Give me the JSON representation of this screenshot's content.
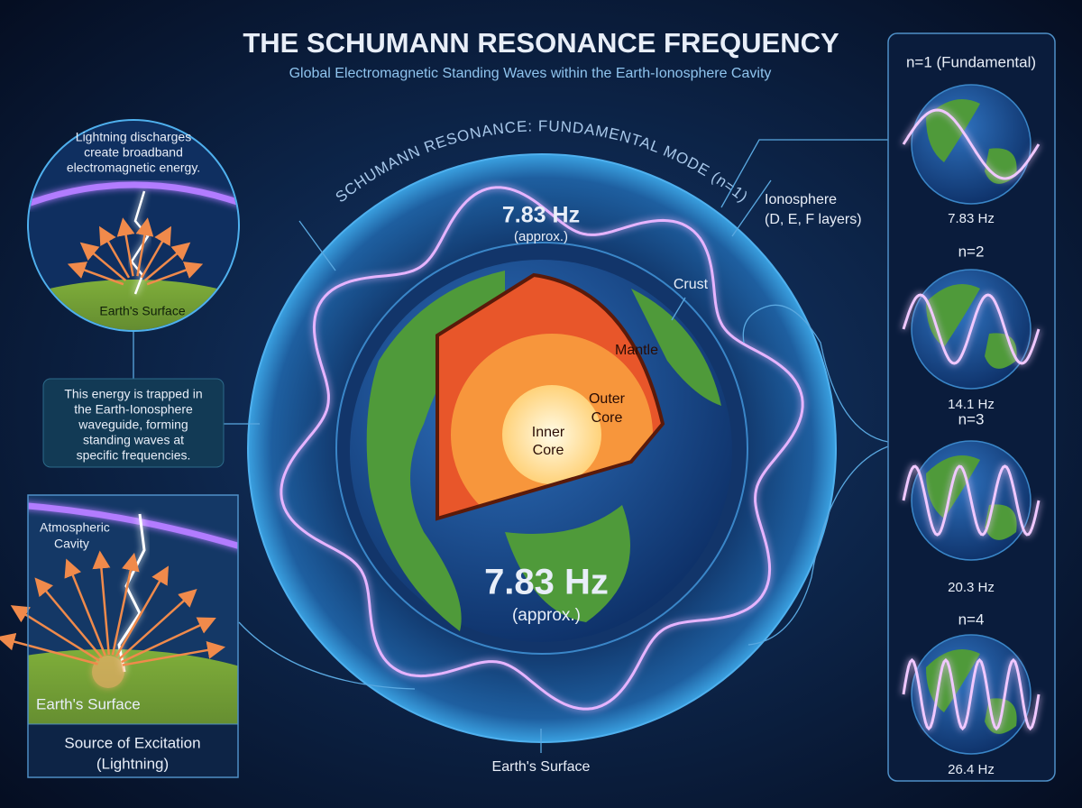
{
  "header": {
    "title": "THE SCHUMANN RESONANCE FREQUENCY",
    "subtitle": "Global Electromagnetic Standing Waves within the Earth-Ionosphere Cavity"
  },
  "center": {
    "arc_label": "SCHUMANN RESONANCE: FUNDAMENTAL MODE (n=1)",
    "top_frequency": "7.83 Hz",
    "top_note": "(approx.)",
    "frequency": "7.83 Hz",
    "note": "(approx.)",
    "ionosphere": [
      "Ionosphere",
      "(D, E, F layers)"
    ],
    "crust": "Crust",
    "mantle": "Mantle",
    "outer_core": [
      "Outer",
      "Core"
    ],
    "inner_core": [
      "Inner",
      "Core"
    ],
    "surface": "Earth's Surface"
  },
  "lightning_callout": {
    "text": [
      "Lightning discharges",
      "create broadband",
      "electromagnetic energy."
    ],
    "surface": "Earth's Surface"
  },
  "trapped_callout": {
    "text": [
      "This energy is trapped in",
      "the Earth-Ionosphere",
      "waveguide, forming",
      "standing waves at",
      "specific frequencies."
    ]
  },
  "source_panel": {
    "cavity": [
      "Atmospheric",
      "Cavity"
    ],
    "surface": "Earth's Surface",
    "caption": [
      "Source of Excitation",
      "(Lightning)"
    ]
  },
  "modes": [
    {
      "label": "n=1 (Fundamental)",
      "frequency": "7.83 Hz"
    },
    {
      "label": "n=2",
      "frequency": "14.1 Hz"
    },
    {
      "label": "n=3",
      "frequency": "20.3 Hz"
    },
    {
      "label": "n=4",
      "frequency": "26.4 Hz"
    }
  ]
}
